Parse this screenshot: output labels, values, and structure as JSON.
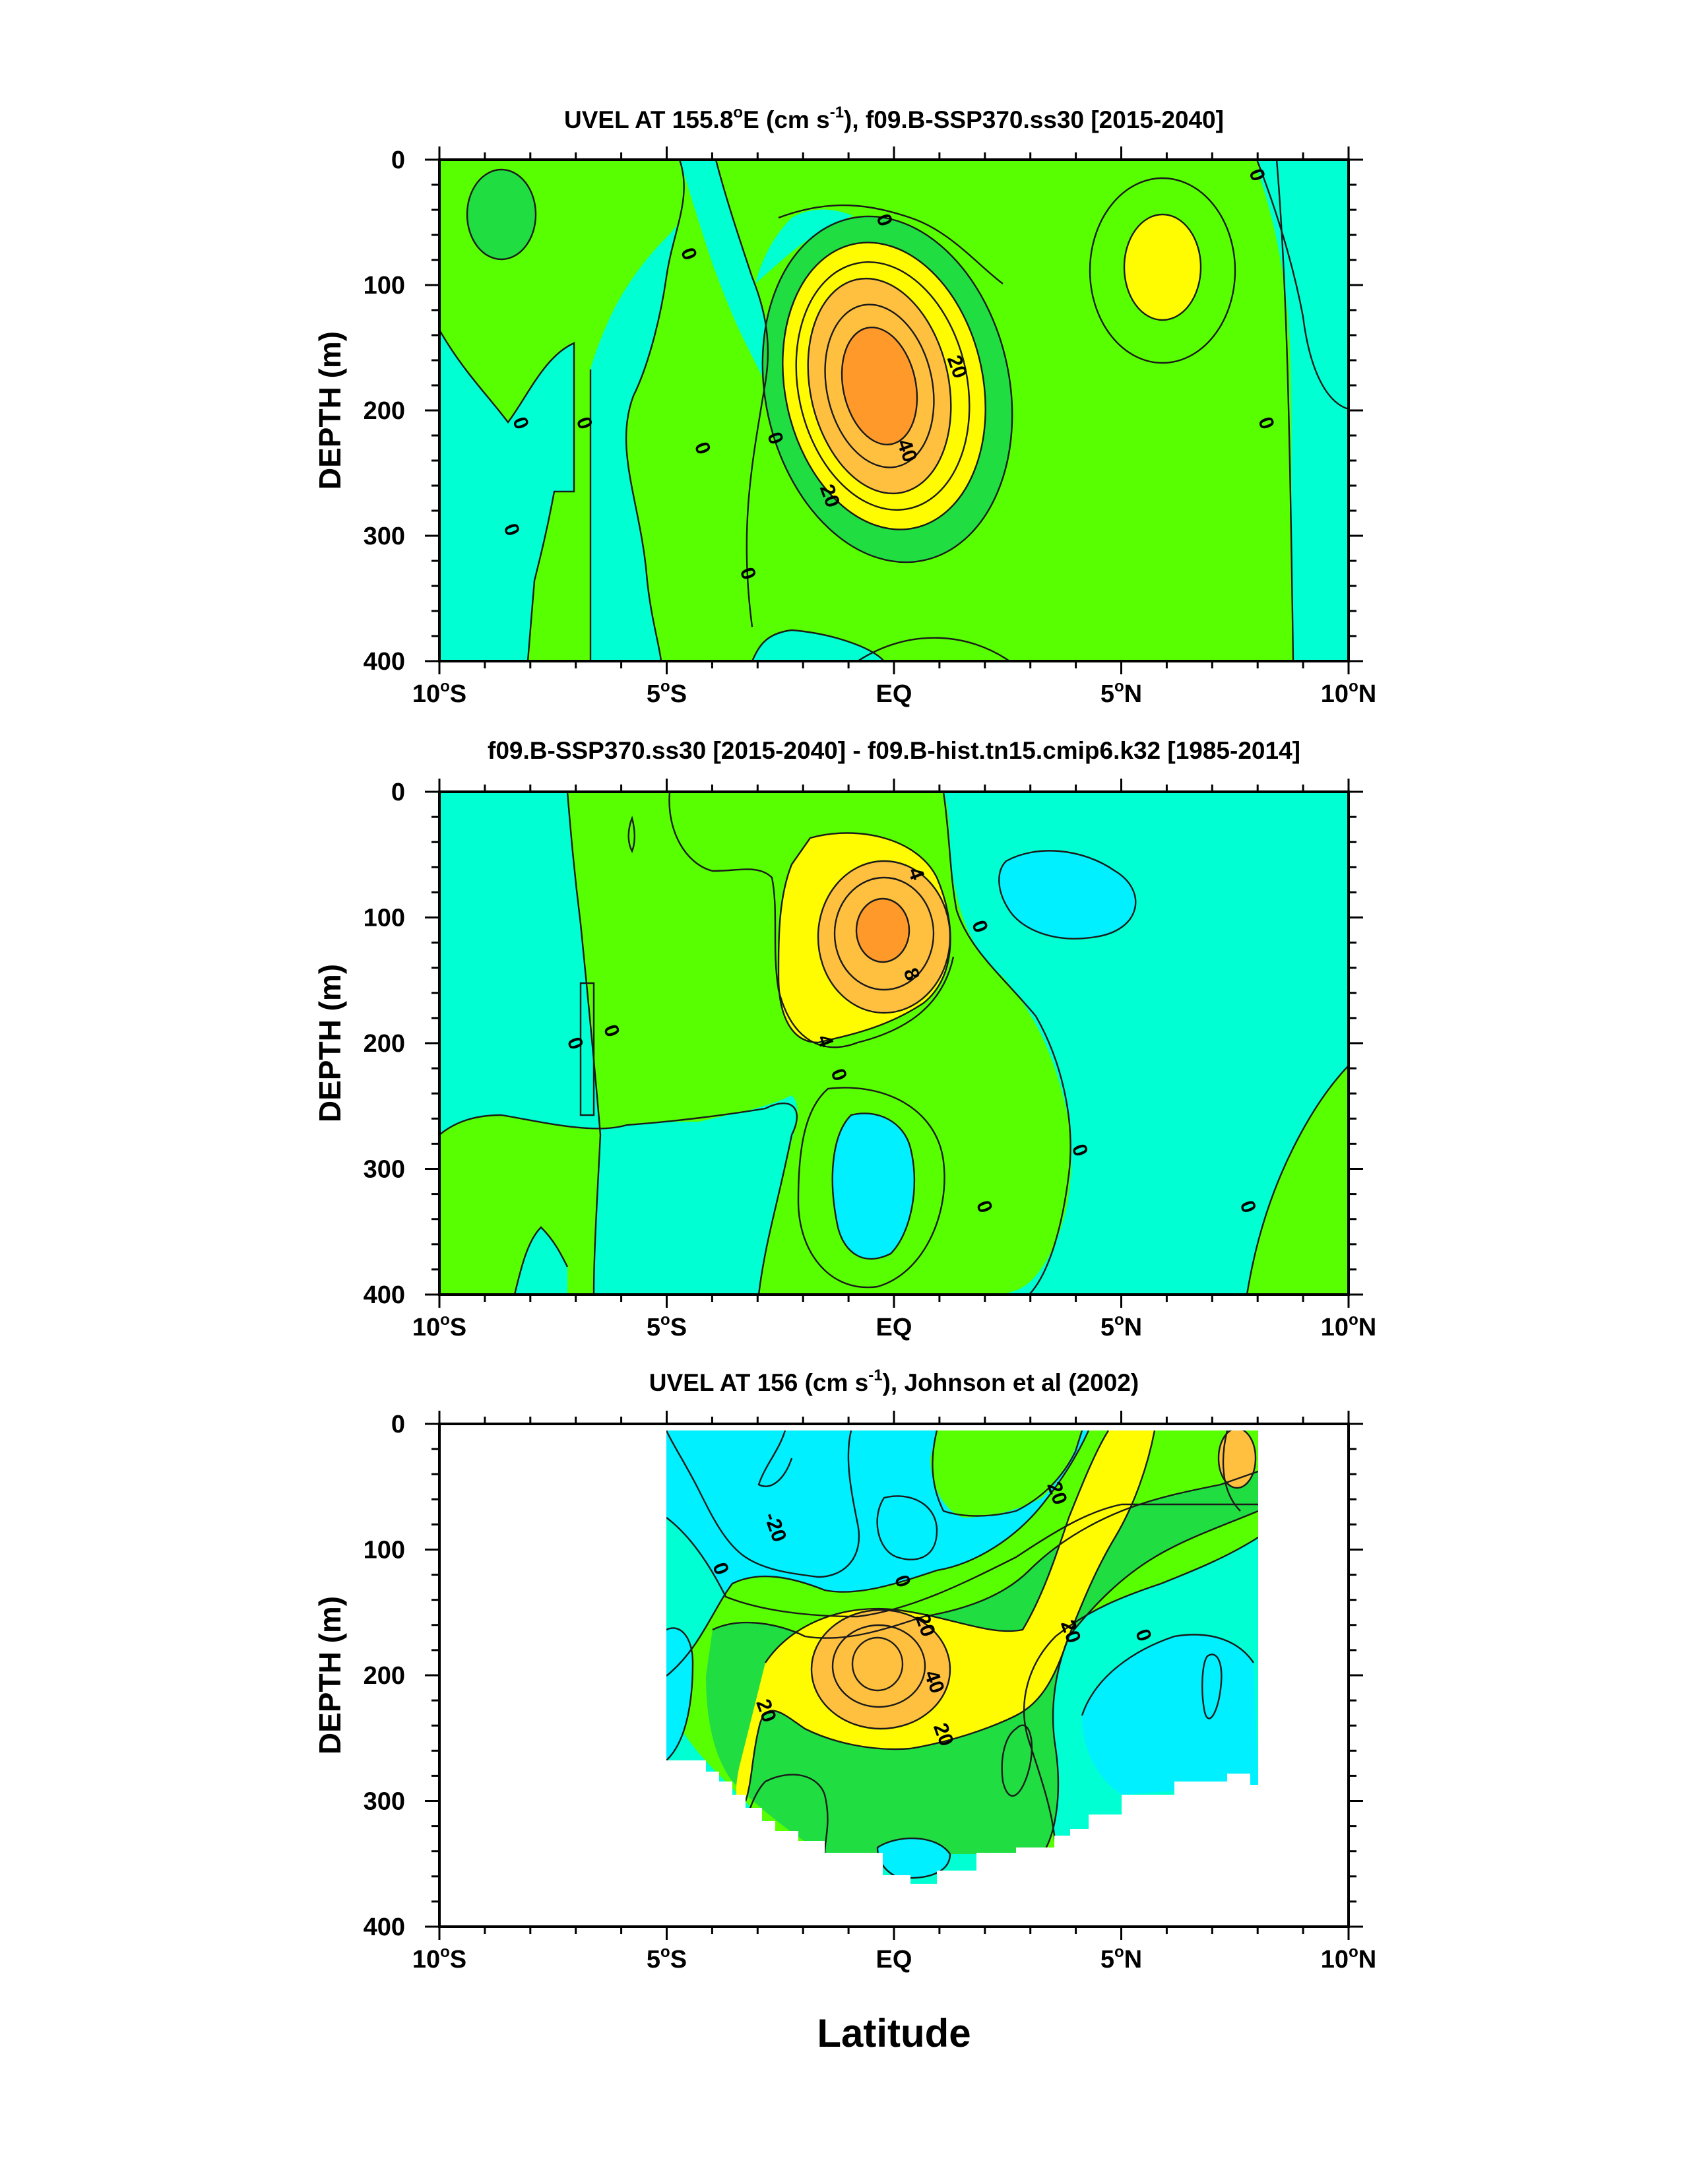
{
  "figure": {
    "xlabel": "Latitude"
  },
  "colors": {
    "level_neg2": "#00f0ff",
    "level_neg1": "#00ffd2",
    "level_0": "#58ff00",
    "level_1": "#20dd42",
    "level_2": "#fffb00",
    "level_3": "#ffc040",
    "level_4": "#ff9a2a",
    "contour_line": "#1a1a1a"
  },
  "chart_data": [
    {
      "type": "contour",
      "title_text": "UVEL AT 155.8°E (cm s-1), f09.B-SSP370.ss30 [2015-2040]",
      "ylabel": "DEPTH (m)",
      "xlim": [
        -10,
        10
      ],
      "ylim": [
        400,
        0
      ],
      "xtick_labels": [
        "10°S",
        "5°S",
        "EQ",
        "5°N",
        "10°N"
      ],
      "ytick_labels": [
        "0",
        "100",
        "200",
        "300",
        "400"
      ],
      "contour_interval": 10,
      "contour_labels": [
        {
          "text": "0",
          "lat": -8.2,
          "depth": 210
        },
        {
          "text": "0",
          "lat": -6.8,
          "depth": 210
        },
        {
          "text": "0",
          "lat": -8.4,
          "depth": 295
        },
        {
          "text": "0",
          "lat": -4.5,
          "depth": 75
        },
        {
          "text": "0",
          "lat": -4.2,
          "depth": 230
        },
        {
          "text": "0",
          "lat": -2.6,
          "depth": 222
        },
        {
          "text": "0",
          "lat": -3.2,
          "depth": 330
        },
        {
          "text": "0",
          "lat": -0.2,
          "depth": 48
        },
        {
          "text": "0",
          "lat": 8.0,
          "depth": 12
        },
        {
          "text": "0",
          "lat": 8.2,
          "depth": 210
        },
        {
          "text": "20",
          "lat": 1.4,
          "depth": 165
        },
        {
          "text": "40",
          "lat": 0.3,
          "depth": 232
        },
        {
          "text": "20",
          "lat": -1.4,
          "depth": 268
        }
      ],
      "features": [
        {
          "name": "Equatorial Undercurrent core",
          "lat": -0.2,
          "depth": 180,
          "max": 50
        },
        {
          "name": "North eastward jet",
          "lat": 5.5,
          "depth": 85,
          "max": 15
        }
      ]
    },
    {
      "type": "contour",
      "title_text": "f09.B-SSP370.ss30 [2015-2040] - f09.B-hist.tn15.cmip6.k32 [1985-2014]",
      "ylabel": "DEPTH (m)",
      "xlim": [
        -10,
        10
      ],
      "ylim": [
        400,
        0
      ],
      "xtick_labels": [
        "10°S",
        "5°S",
        "EQ",
        "5°N",
        "10°N"
      ],
      "ytick_labels": [
        "0",
        "100",
        "200",
        "300",
        "400"
      ],
      "contour_interval": 2,
      "contour_labels": [
        {
          "text": "4",
          "lat": 0.5,
          "depth": 65
        },
        {
          "text": "0",
          "lat": 1.9,
          "depth": 107
        },
        {
          "text": "8",
          "lat": 0.4,
          "depth": 145
        },
        {
          "text": "4",
          "lat": -1.5,
          "depth": 198
        },
        {
          "text": "0",
          "lat": -1.2,
          "depth": 225
        },
        {
          "text": "0",
          "lat": -7.0,
          "depth": 200
        },
        {
          "text": "0",
          "lat": -6.2,
          "depth": 190
        },
        {
          "text": "0",
          "lat": 4.1,
          "depth": 285
        },
        {
          "text": "0",
          "lat": 2.0,
          "depth": 330
        },
        {
          "text": "0",
          "lat": 7.8,
          "depth": 330
        }
      ],
      "features": [
        {
          "name": "Positive anomaly core",
          "lat": -0.2,
          "depth": 115,
          "max": 12
        },
        {
          "name": "Negative anomaly",
          "lat": -0.3,
          "depth": 290,
          "min": -4
        },
        {
          "name": "Negative anomaly north",
          "lat": 3.8,
          "depth": 85,
          "min": -2
        }
      ]
    },
    {
      "type": "contour",
      "title_text": "UVEL AT 156 (cm s-1), Johnson et al (2002)",
      "ylabel": "DEPTH (m)",
      "xlim": [
        -10,
        10
      ],
      "ylim": [
        400,
        0
      ],
      "xtick_labels": [
        "10°S",
        "5°S",
        "EQ",
        "5°N",
        "10°N"
      ],
      "ytick_labels": [
        "0",
        "100",
        "200",
        "300",
        "400"
      ],
      "contour_interval": 10,
      "data_extent_lat": [
        -5,
        8
      ],
      "contour_labels": [
        {
          "text": "-20",
          "lat": -2.6,
          "depth": 82
        },
        {
          "text": "0",
          "lat": -3.8,
          "depth": 115
        },
        {
          "text": "0",
          "lat": 0.2,
          "depth": 125
        },
        {
          "text": "20",
          "lat": 0.7,
          "depth": 160
        },
        {
          "text": "40",
          "lat": 0.9,
          "depth": 205
        },
        {
          "text": "20",
          "lat": -2.8,
          "depth": 228
        },
        {
          "text": "20",
          "lat": 1.1,
          "depth": 247
        },
        {
          "text": "20",
          "lat": 3.6,
          "depth": 55
        },
        {
          "text": "20",
          "lat": 3.9,
          "depth": 165
        },
        {
          "text": "0",
          "lat": 5.5,
          "depth": 168
        }
      ],
      "features": [
        {
          "name": "Equatorial Undercurrent core",
          "lat": -0.4,
          "depth": 200,
          "max": 50
        }
      ]
    }
  ]
}
